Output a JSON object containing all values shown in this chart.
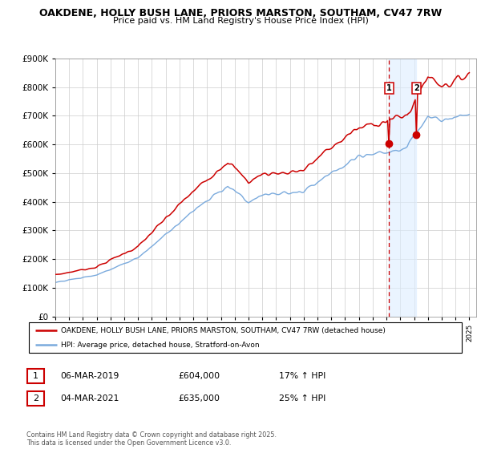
{
  "title_line1": "OAKDENE, HOLLY BUSH LANE, PRIORS MARSTON, SOUTHAM, CV47 7RW",
  "title_line2": "Price paid vs. HM Land Registry's House Price Index (HPI)",
  "legend_label1": "OAKDENE, HOLLY BUSH LANE, PRIORS MARSTON, SOUTHAM, CV47 7RW (detached house)",
  "legend_label2": "HPI: Average price, detached house, Stratford-on-Avon",
  "sale1_label": "1",
  "sale1_date": "06-MAR-2019",
  "sale1_price": "£604,000",
  "sale1_hpi": "17% ↑ HPI",
  "sale2_label": "2",
  "sale2_date": "04-MAR-2021",
  "sale2_price": "£635,000",
  "sale2_hpi": "25% ↑ HPI",
  "footer": "Contains HM Land Registry data © Crown copyright and database right 2025.\nThis data is licensed under the Open Government Licence v3.0.",
  "sale1_year": 2019.17,
  "sale2_year": 2021.17,
  "sale1_value": 604000,
  "sale2_value": 635000,
  "line1_color": "#cc0000",
  "line2_color": "#7aaadd",
  "marker_vline_color": "#cc0000",
  "marker_fill_color": "#ddeeff",
  "ylim_min": 0,
  "ylim_max": 900000,
  "ytick_step": 100000,
  "xstart": 1995,
  "xend": 2025.5
}
